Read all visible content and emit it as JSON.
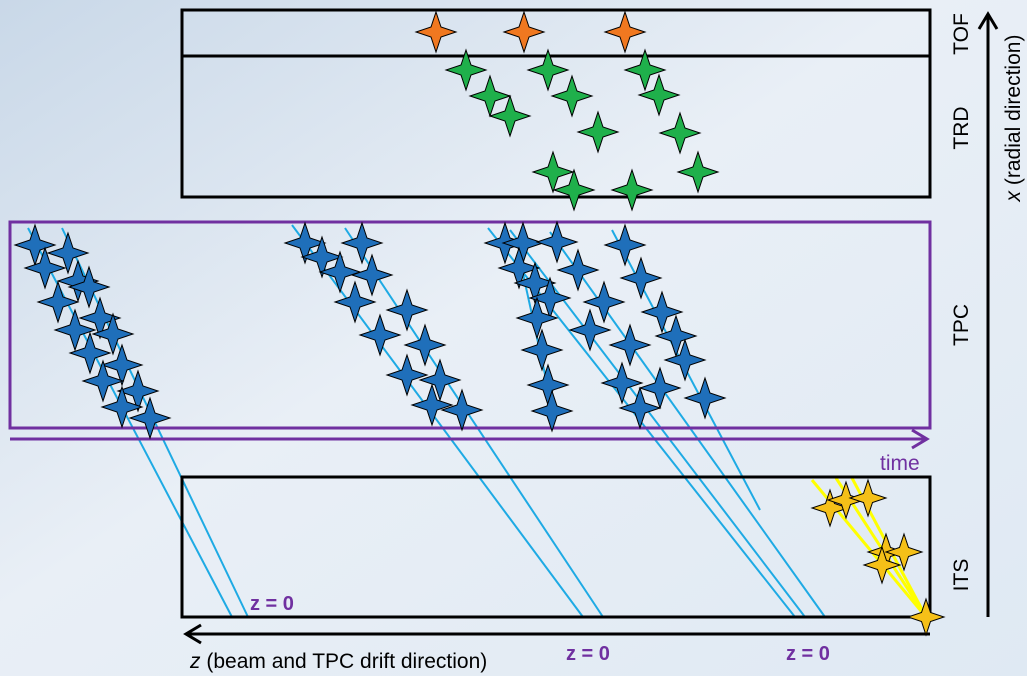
{
  "detectors": {
    "tof": "TOF",
    "trd": "TRD",
    "tpc": "TPC",
    "its": "ITS"
  },
  "axes": {
    "x_symbol": "x",
    "x_text": "(radial direction)",
    "time": "time",
    "z_symbol": "z",
    "z_text": "(beam and TPC drift direction)"
  },
  "z_markers": [
    "z = 0",
    "z = 0",
    "z = 0"
  ]
}
